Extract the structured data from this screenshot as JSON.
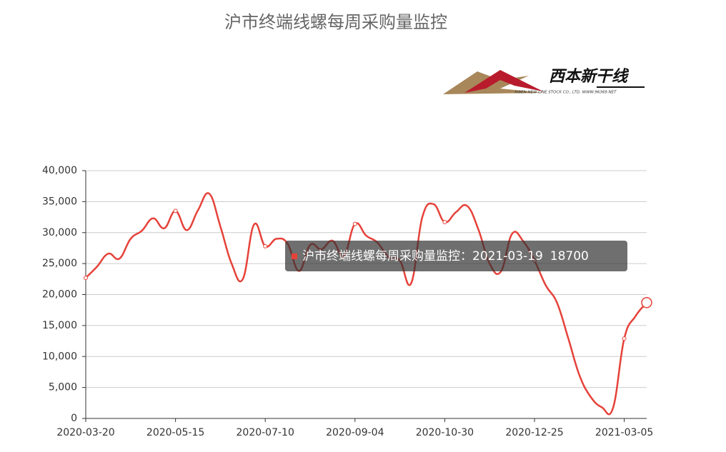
{
  "chart_data": {
    "type": "line",
    "title": "沪市终端线螺每周采购量监控",
    "logo": {
      "name": "西本新干线",
      "subtitle": "XIBEN NEW LINE STOCK CO., LTD.  WWW.96369.NET"
    },
    "categories": [
      "2020-03-20",
      null,
      null,
      null,
      null,
      null,
      null,
      null,
      "2020-05-15",
      null,
      null,
      null,
      null,
      null,
      null,
      null,
      "2020-07-10",
      null,
      null,
      null,
      null,
      null,
      null,
      null,
      "2020-09-04",
      null,
      null,
      null,
      null,
      null,
      null,
      null,
      "2020-10-30",
      null,
      null,
      null,
      null,
      null,
      null,
      null,
      "2020-12-25",
      null,
      null,
      null,
      null,
      null,
      null,
      null,
      "2021-03-05",
      null,
      "2021-03-19"
    ],
    "series": [
      {
        "name": "沪市终端线螺每周采购量监控",
        "color": "#e5423a",
        "values": [
          22700,
          24500,
          26600,
          25800,
          29000,
          30300,
          32300,
          30700,
          33500,
          30400,
          33600,
          36300,
          31000,
          25000,
          22500,
          31300,
          27800,
          29000,
          28200,
          23800,
          28000,
          27300,
          28700,
          26200,
          31400,
          29500,
          28400,
          26000,
          25500,
          21800,
          32500,
          34600,
          31700,
          33300,
          34300,
          30500,
          25000,
          23700,
          29800,
          28600,
          25500,
          21500,
          18700,
          13000,
          7000,
          3500,
          1800,
          1700,
          12900,
          16500,
          18700
        ]
      }
    ],
    "ylim": [
      0,
      40000
    ],
    "yticks": [
      0,
      {
        "value": 5000,
        "label": "5,000"
      },
      {
        "value": 10000,
        "label": "10,000"
      },
      {
        "value": 15000,
        "label": "15,000"
      },
      {
        "value": 20000,
        "label": "20,000"
      },
      {
        "value": 25000,
        "label": "25,000"
      },
      {
        "value": 30000,
        "label": "30,000"
      },
      {
        "value": 35000,
        "label": "35,000"
      },
      {
        "value": 40000,
        "label": "40,000"
      }
    ],
    "grid": true,
    "tooltip": {
      "index": 50,
      "separator": "："
    }
  }
}
